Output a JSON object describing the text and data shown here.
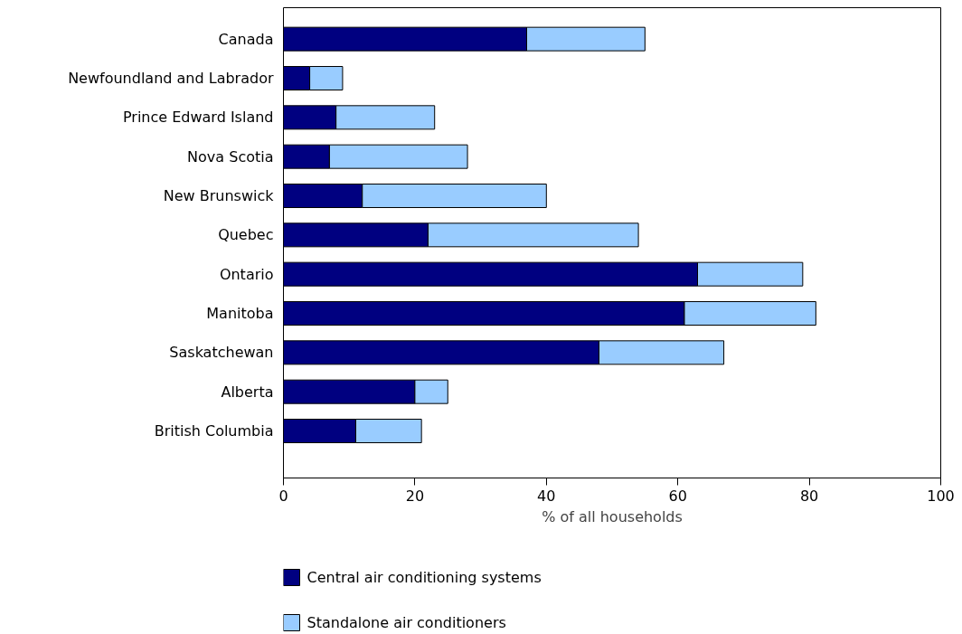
{
  "chart_data": {
    "type": "bar",
    "orientation": "horizontal",
    "stacked": true,
    "categories": [
      "Canada",
      "Newfoundland and Labrador",
      "Prince Edward Island",
      "Nova Scotia",
      "New Brunswick",
      "Quebec",
      "Ontario",
      "Manitoba",
      "Saskatchewan",
      "Alberta",
      "British Columbia"
    ],
    "series": [
      {
        "name": "Central air conditioning systems",
        "color": "#000080",
        "values": [
          37,
          4,
          8,
          7,
          12,
          22,
          63,
          61,
          48,
          20,
          11
        ]
      },
      {
        "name": "Standalone air conditioners",
        "color": "#99ccff",
        "values": [
          18,
          5,
          15,
          21,
          28,
          32,
          16,
          20,
          19,
          5,
          10
        ]
      }
    ],
    "xlim": [
      0,
      100
    ],
    "xticks": [
      0,
      20,
      40,
      60,
      80,
      100
    ],
    "xlabel": "% of all households",
    "grid": false,
    "legend": "bottom"
  }
}
